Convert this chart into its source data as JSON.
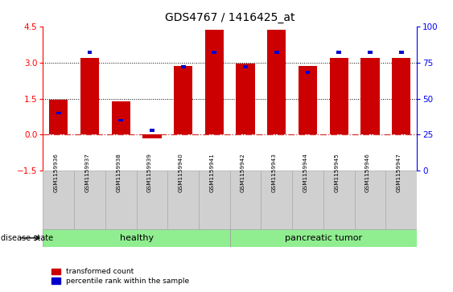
{
  "title": "GDS4767 / 1416425_at",
  "samples": [
    "GSM1159936",
    "GSM1159937",
    "GSM1159938",
    "GSM1159939",
    "GSM1159940",
    "GSM1159941",
    "GSM1159942",
    "GSM1159943",
    "GSM1159944",
    "GSM1159945",
    "GSM1159946",
    "GSM1159947"
  ],
  "transformed_count": [
    1.45,
    3.2,
    1.4,
    -0.15,
    2.85,
    4.35,
    2.95,
    4.35,
    2.85,
    3.2,
    3.2,
    3.2
  ],
  "percentile_rank": [
    40,
    82,
    35,
    28,
    72,
    82,
    72,
    82,
    68,
    82,
    82,
    82
  ],
  "groups": [
    "healthy",
    "healthy",
    "healthy",
    "healthy",
    "healthy",
    "healthy",
    "pancreatic tumor",
    "pancreatic tumor",
    "pancreatic tumor",
    "pancreatic tumor",
    "pancreatic tumor",
    "pancreatic tumor"
  ],
  "healthy_color": "#90EE90",
  "tumor_color": "#90EE90",
  "bar_color_red": "#CC0000",
  "bar_color_blue": "#0000CC",
  "ylim_left": [
    -1.5,
    4.5
  ],
  "ylim_right": [
    0,
    100
  ],
  "yticks_left": [
    -1.5,
    0,
    1.5,
    3.0,
    4.5
  ],
  "yticks_right": [
    0,
    25,
    50,
    75,
    100
  ],
  "bg_color": "#FFFFFF",
  "tick_label_area_color": "#D0D0D0",
  "n_healthy": 6,
  "n_tumor": 6
}
